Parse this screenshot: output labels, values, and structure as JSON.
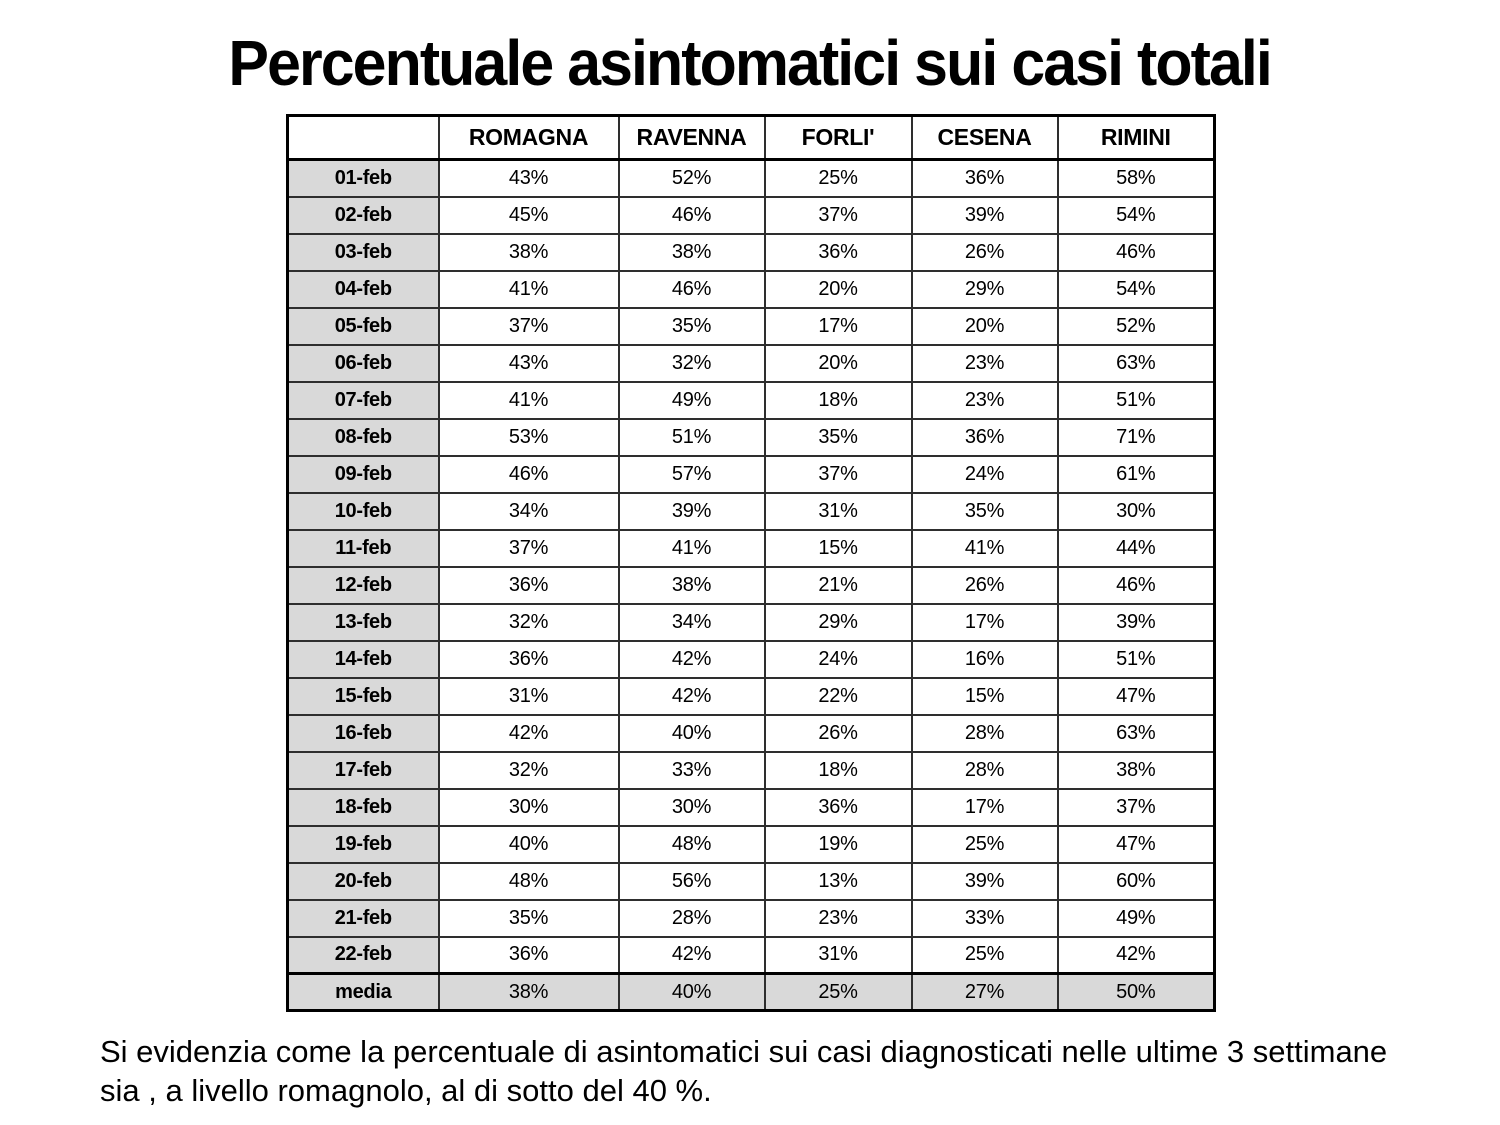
{
  "page": {
    "title": "Percentuale asintomatici sui casi totali",
    "footer": "Si evidenzia come la percentuale di asintomatici sui casi diagnosticati nelle ultime 3 settimane sia , a livello romagnolo, al di sotto del 40 %."
  },
  "colors": {
    "background": "#ffffff",
    "row_label_bg": "#d9d9d9",
    "summary_row_bg": "#d9d9d9",
    "border": "#000000",
    "text": "#000000"
  },
  "table": {
    "headers": [
      "",
      "ROMAGNA",
      "RAVENNA",
      "FORLI'",
      "CESENA",
      "RIMINI"
    ],
    "summary_row_label": "media",
    "rows": [
      {
        "label": "01-feb",
        "values": [
          "43%",
          "52%",
          "25%",
          "36%",
          "58%"
        ]
      },
      {
        "label": "02-feb",
        "values": [
          "45%",
          "46%",
          "37%",
          "39%",
          "54%"
        ]
      },
      {
        "label": "03-feb",
        "values": [
          "38%",
          "38%",
          "36%",
          "26%",
          "46%"
        ]
      },
      {
        "label": "04-feb",
        "values": [
          "41%",
          "46%",
          "20%",
          "29%",
          "54%"
        ]
      },
      {
        "label": "05-feb",
        "values": [
          "37%",
          "35%",
          "17%",
          "20%",
          "52%"
        ]
      },
      {
        "label": "06-feb",
        "values": [
          "43%",
          "32%",
          "20%",
          "23%",
          "63%"
        ]
      },
      {
        "label": "07-feb",
        "values": [
          "41%",
          "49%",
          "18%",
          "23%",
          "51%"
        ]
      },
      {
        "label": "08-feb",
        "values": [
          "53%",
          "51%",
          "35%",
          "36%",
          "71%"
        ]
      },
      {
        "label": "09-feb",
        "values": [
          "46%",
          "57%",
          "37%",
          "24%",
          "61%"
        ]
      },
      {
        "label": "10-feb",
        "values": [
          "34%",
          "39%",
          "31%",
          "35%",
          "30%"
        ]
      },
      {
        "label": "11-feb",
        "values": [
          "37%",
          "41%",
          "15%",
          "41%",
          "44%"
        ]
      },
      {
        "label": "12-feb",
        "values": [
          "36%",
          "38%",
          "21%",
          "26%",
          "46%"
        ]
      },
      {
        "label": "13-feb",
        "values": [
          "32%",
          "34%",
          "29%",
          "17%",
          "39%"
        ]
      },
      {
        "label": "14-feb",
        "values": [
          "36%",
          "42%",
          "24%",
          "16%",
          "51%"
        ]
      },
      {
        "label": "15-feb",
        "values": [
          "31%",
          "42%",
          "22%",
          "15%",
          "47%"
        ]
      },
      {
        "label": "16-feb",
        "values": [
          "42%",
          "40%",
          "26%",
          "28%",
          "63%"
        ]
      },
      {
        "label": "17-feb",
        "values": [
          "32%",
          "33%",
          "18%",
          "28%",
          "38%"
        ]
      },
      {
        "label": "18-feb",
        "values": [
          "30%",
          "30%",
          "36%",
          "17%",
          "37%"
        ]
      },
      {
        "label": "19-feb",
        "values": [
          "40%",
          "48%",
          "19%",
          "25%",
          "47%"
        ]
      },
      {
        "label": "20-feb",
        "values": [
          "48%",
          "56%",
          "13%",
          "39%",
          "60%"
        ]
      },
      {
        "label": "21-feb",
        "values": [
          "35%",
          "28%",
          "23%",
          "33%",
          "49%"
        ]
      },
      {
        "label": "22-feb",
        "values": [
          "36%",
          "42%",
          "31%",
          "25%",
          "42%"
        ]
      },
      {
        "label": "media",
        "values": [
          "38%",
          "40%",
          "25%",
          "27%",
          "50%"
        ]
      }
    ]
  },
  "chart_data": {
    "type": "table",
    "title": "Percentuale asintomatici sui casi totali",
    "columns": [
      "ROMAGNA",
      "RAVENNA",
      "FORLI'",
      "CESENA",
      "RIMINI"
    ],
    "row_labels": [
      "01-feb",
      "02-feb",
      "03-feb",
      "04-feb",
      "05-feb",
      "06-feb",
      "07-feb",
      "08-feb",
      "09-feb",
      "10-feb",
      "11-feb",
      "12-feb",
      "13-feb",
      "14-feb",
      "15-feb",
      "16-feb",
      "17-feb",
      "18-feb",
      "19-feb",
      "20-feb",
      "21-feb",
      "22-feb",
      "media"
    ],
    "series": [
      {
        "name": "ROMAGNA",
        "values": [
          43,
          45,
          38,
          41,
          37,
          43,
          41,
          53,
          46,
          34,
          37,
          36,
          32,
          36,
          31,
          42,
          32,
          30,
          40,
          48,
          35,
          36,
          38
        ]
      },
      {
        "name": "RAVENNA",
        "values": [
          52,
          46,
          38,
          46,
          35,
          32,
          49,
          51,
          57,
          39,
          41,
          38,
          34,
          42,
          42,
          40,
          33,
          30,
          48,
          56,
          28,
          42,
          40
        ]
      },
      {
        "name": "FORLI'",
        "values": [
          25,
          37,
          36,
          20,
          17,
          20,
          18,
          35,
          37,
          31,
          15,
          21,
          29,
          24,
          22,
          26,
          18,
          36,
          19,
          13,
          23,
          31,
          25
        ]
      },
      {
        "name": "CESENA",
        "values": [
          36,
          39,
          26,
          29,
          20,
          23,
          23,
          36,
          24,
          35,
          41,
          26,
          17,
          16,
          15,
          28,
          28,
          17,
          25,
          39,
          33,
          25,
          27
        ]
      },
      {
        "name": "RIMINI",
        "values": [
          58,
          54,
          46,
          54,
          52,
          63,
          51,
          71,
          61,
          30,
          44,
          46,
          39,
          51,
          47,
          63,
          38,
          37,
          47,
          60,
          49,
          42,
          50
        ]
      }
    ],
    "unit": "%"
  }
}
